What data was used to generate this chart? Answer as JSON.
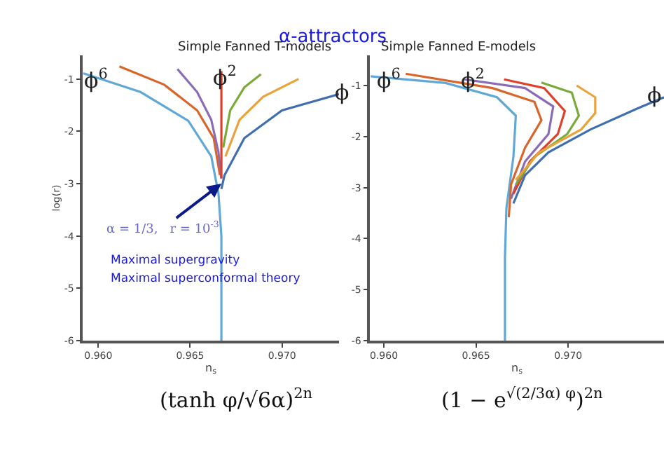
{
  "chart_data": [
    {
      "type": "line",
      "title": "Simple Fanned T-models",
      "xlabel": "n$_{s}$",
      "ylabel": "log(r)",
      "xlim": [
        0.95915,
        0.9731
      ],
      "ylim": [
        -6,
        -0.55
      ],
      "xticks": [
        {
          "value": 0.96,
          "label": "0.960"
        },
        {
          "value": 0.965,
          "label": "0.965"
        },
        {
          "value": 0.97,
          "label": "0.970"
        }
      ],
      "yticks": [
        -6,
        -5,
        -4,
        -3,
        -2,
        -1
      ],
      "marker": "none",
      "line_style": "solid",
      "series": [
        {
          "color": "#5fa8d8",
          "x": [
            0.95918,
            0.9623,
            0.9649,
            0.96615,
            0.96654,
            0.9667,
            0.9667
          ],
          "values": [
            -0.89,
            -1.25,
            -1.8,
            -2.48,
            -3.19,
            -4,
            -6
          ]
        },
        {
          "color": "#3f6fb0",
          "x": [
            0.9667,
            0.96687,
            0.96795,
            0.97,
            0.9731
          ],
          "values": [
            -3.1,
            -2.84,
            -2.13,
            -1.6,
            -1.29
          ]
        },
        {
          "color": "#d9652b",
          "x": [
            0.96115,
            0.96359,
            0.96538,
            0.96628,
            0.96662
          ],
          "values": [
            -0.76,
            -1.11,
            -1.6,
            -2.13,
            -2.84
          ]
        },
        {
          "color": "#8a6bb5",
          "x": [
            0.96431,
            0.96538,
            0.96615,
            0.96654,
            0.9667
          ],
          "values": [
            -0.81,
            -1.25,
            -1.78,
            -2.4,
            -2.9
          ]
        },
        {
          "color": "#e0402a",
          "x": [
            0.9667,
            0.9667
          ],
          "values": [
            -0.85,
            -2.9
          ]
        },
        {
          "color": "#7aaa3a",
          "x": [
            0.96885,
            0.96795,
            0.96718,
            0.9668
          ],
          "values": [
            -0.91,
            -1.16,
            -1.6,
            -2.31
          ]
        },
        {
          "color": "#e8a33a",
          "x": [
            0.9709,
            0.96897,
            0.96769,
            0.96692
          ],
          "values": [
            -1.0,
            -1.34,
            -1.78,
            -2.48
          ]
        }
      ],
      "annotations": [
        "α-attractors",
        "Maximal supergravity",
        "Maximal superconformal theory",
        "ϕ$^{6}$",
        "ϕ$^{2}$",
        "ϕ",
        "(tanh φ/√6α)$^{2n}$",
        {
          "text": "α = 1/3,   r = 10$^{-3}$",
          "x": 0.9667,
          "y": -3
        }
      ]
    },
    {
      "type": "line",
      "title": "Simple Fanned E-models",
      "xlabel": "n$_{s}$",
      "xlim": [
        0.95924,
        0.9752
      ],
      "ylim": [
        -6,
        -0.41
      ],
      "xticks": [
        {
          "value": 0.96,
          "label": "0.960"
        },
        {
          "value": 0.965,
          "label": "0.965"
        },
        {
          "value": 0.97,
          "label": "0.970"
        }
      ],
      "yticks": [
        -6,
        -5,
        -4,
        -3,
        -2,
        -1
      ],
      "marker": "none",
      "line_style": "solid",
      "series": [
        {
          "color": "#5fa8d8",
          "x": [
            0.95929,
            0.96335,
            0.96614,
            0.96716,
            0.96703,
            0.96665,
            0.96657,
            0.96657
          ],
          "values": [
            -0.82,
            -0.95,
            -1.23,
            -1.59,
            -2.4,
            -3.4,
            -4.39,
            -6
          ]
        },
        {
          "color": "#d9652b",
          "x": [
            0.96119,
            0.96589,
            0.96817,
            0.96855,
            0.96766,
            0.9669,
            0.96678
          ],
          "values": [
            -0.77,
            -1.05,
            -1.32,
            -1.68,
            -2.22,
            -2.94,
            -3.58
          ]
        },
        {
          "color": "#8a6bb5",
          "x": [
            0.96437,
            0.96766,
            0.96919,
            0.96893,
            0.96766,
            0.9669
          ],
          "values": [
            -0.88,
            -1.05,
            -1.41,
            -1.95,
            -2.49,
            -3.22
          ]
        },
        {
          "color": "#e0402a",
          "x": [
            0.96652,
            0.9687,
            0.96982,
            0.96944,
            0.96792,
            0.96703
          ],
          "values": [
            -0.88,
            -1.05,
            -1.5,
            -1.95,
            -2.49,
            -3.12
          ]
        },
        {
          "color": "#7aaa3a",
          "x": [
            0.96855,
            0.9702,
            0.97058,
            0.96995,
            0.96817,
            0.96716
          ],
          "values": [
            -0.94,
            -1.14,
            -1.59,
            -1.95,
            -2.4,
            -2.94
          ]
        },
        {
          "color": "#e8a33a",
          "x": [
            0.97046,
            0.97147,
            0.97147,
            0.97071,
            0.96843,
            0.96716
          ],
          "values": [
            -1.0,
            -1.23,
            -1.54,
            -1.86,
            -2.31,
            -2.85
          ]
        },
        {
          "color": "#3f6fb0",
          "x": [
            0.96703,
            0.96766,
            0.96893,
            0.97122,
            0.97376,
            0.9752
          ],
          "values": [
            -3.31,
            -2.76,
            -2.31,
            -1.86,
            -1.45,
            -1.23
          ]
        }
      ],
      "annotations": [
        "ϕ$^{6}$",
        "ϕ$^{2}$",
        "ϕ",
        "(1 − e$^{√(2/3α) φ}$)$^{2n}$"
      ]
    }
  ]
}
